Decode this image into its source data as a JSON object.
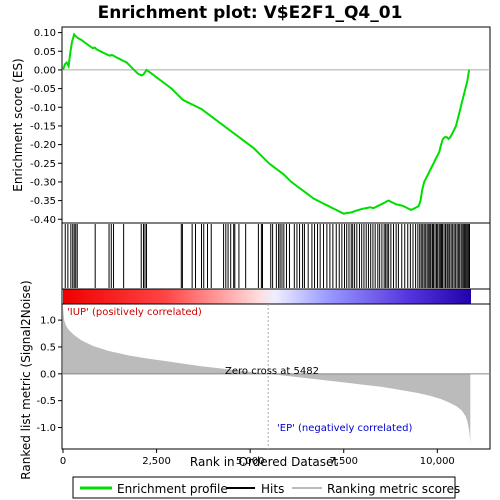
{
  "chart_data": {
    "type": "line",
    "title": "Enrichment plot: V$E2F1_Q4_01",
    "xlabel": "Rank in Ordered Dataset",
    "ylabel_top": "Enrichment score (ES)",
    "ylabel_bottom": "Ranked list metric (Signal2Noise)",
    "xlim": [
      0,
      10900
    ],
    "x_ticks": [
      0,
      2500,
      5000,
      7500,
      10000
    ],
    "x_tick_labels": [
      "0",
      "2,500",
      "5,000",
      "7,500",
      "10,000"
    ],
    "es_ylim": [
      -0.41,
      0.115
    ],
    "es_ticks": [
      0.1,
      0.05,
      0.0,
      -0.05,
      -0.1,
      -0.15,
      -0.2,
      -0.25,
      -0.3,
      -0.35,
      -0.4
    ],
    "es_tick_labels": [
      "0.10",
      "0.05",
      "0.00",
      "-0.05",
      "-0.10",
      "-0.15",
      "-0.20",
      "-0.25",
      "-0.30",
      "-0.35",
      "-0.40"
    ],
    "metric_ylim": [
      -1.4,
      1.3
    ],
    "metric_ticks": [
      1.0,
      0.5,
      0.0,
      -0.5,
      -1.0
    ],
    "metric_tick_labels": [
      "1.0",
      "0.5",
      "0.0",
      "-0.5",
      "-1.0"
    ],
    "zero_cross_rank": 5482,
    "annotations": {
      "positive": "'IUP' (positively correlated)",
      "negative": "'EP' (negatively correlated)",
      "zero_cross": "Zero cross at 5482"
    },
    "legend": {
      "position": "bottom",
      "items": [
        {
          "label": "Enrichment profile",
          "color": "#00dd00"
        },
        {
          "label": "Hits",
          "color": "#000000"
        },
        {
          "label": "Ranking metric scores",
          "color": "#bbbbbb"
        }
      ]
    },
    "colors": {
      "profile": "#00dd00",
      "hits": "#000000",
      "metric": "#bbbbbb",
      "pos_label": "#cc0000",
      "neg_label": "#0000cc"
    },
    "es_profile": {
      "x": [
        0,
        50,
        100,
        150,
        200,
        240,
        300,
        340,
        400,
        500,
        600,
        700,
        800,
        850,
        900,
        1000,
        1100,
        1200,
        1250,
        1300,
        1350,
        1400,
        1500,
        1600,
        1700,
        1800,
        1900,
        2000,
        2100,
        2150,
        2200,
        2230,
        2300,
        2400,
        2500,
        2700,
        2900,
        3100,
        3200,
        3300,
        3500,
        3700,
        3900,
        4100,
        4300,
        4500,
        4700,
        4900,
        5100,
        5300,
        5500,
        5700,
        5900,
        6100,
        6300,
        6500,
        6700,
        6900,
        7100,
        7200,
        7300,
        7400,
        7500,
        7600,
        7700,
        7800,
        7900,
        8000,
        8100,
        8200,
        8300,
        8400,
        8500,
        8600,
        8650,
        8700,
        8800,
        8900,
        9000,
        9100,
        9200,
        9300,
        9400,
        9500,
        9550,
        9600,
        9650,
        9700,
        9750,
        9800,
        9850,
        9900,
        9950,
        10000,
        10050,
        10100,
        10150,
        10200,
        10250,
        10300,
        10350,
        10400,
        10450,
        10500,
        10550,
        10600,
        10650,
        10700,
        10750,
        10800,
        10850
      ],
      "y": [
        0.0,
        0.015,
        0.02,
        0.01,
        0.05,
        0.075,
        0.095,
        0.09,
        0.085,
        0.08,
        0.072,
        0.065,
        0.058,
        0.06,
        0.055,
        0.05,
        0.045,
        0.04,
        0.038,
        0.04,
        0.038,
        0.035,
        0.03,
        0.025,
        0.02,
        0.01,
        0.0,
        -0.01,
        -0.015,
        -0.012,
        -0.005,
        0.0,
        -0.005,
        -0.012,
        -0.02,
        -0.035,
        -0.05,
        -0.07,
        -0.08,
        -0.085,
        -0.095,
        -0.105,
        -0.12,
        -0.135,
        -0.15,
        -0.165,
        -0.18,
        -0.195,
        -0.21,
        -0.23,
        -0.25,
        -0.265,
        -0.28,
        -0.3,
        -0.315,
        -0.33,
        -0.345,
        -0.355,
        -0.365,
        -0.37,
        -0.375,
        -0.38,
        -0.385,
        -0.383,
        -0.382,
        -0.378,
        -0.375,
        -0.372,
        -0.37,
        -0.368,
        -0.37,
        -0.365,
        -0.36,
        -0.355,
        -0.352,
        -0.35,
        -0.355,
        -0.36,
        -0.362,
        -0.365,
        -0.37,
        -0.375,
        -0.37,
        -0.365,
        -0.35,
        -0.32,
        -0.3,
        -0.29,
        -0.28,
        -0.27,
        -0.26,
        -0.25,
        -0.24,
        -0.23,
        -0.22,
        -0.2,
        -0.185,
        -0.18,
        -0.18,
        -0.185,
        -0.18,
        -0.17,
        -0.16,
        -0.15,
        -0.13,
        -0.11,
        -0.09,
        -0.07,
        -0.05,
        -0.03,
        0.0
      ]
    },
    "hit_ranks": [
      60,
      130,
      210,
      260,
      300,
      340,
      380,
      860,
      1230,
      1290,
      1350,
      1620,
      2090,
      2150,
      2190,
      2230,
      3160,
      3190,
      3450,
      3540,
      3700,
      3760,
      3860,
      3960,
      4290,
      4350,
      4410,
      4480,
      4560,
      4590,
      4700,
      4880,
      5220,
      5300,
      5330,
      5550,
      5600,
      5700,
      5760,
      5800,
      5850,
      5900,
      5970,
      6050,
      6180,
      6250,
      6320,
      6400,
      6450,
      6550,
      6650,
      6720,
      6800,
      6870,
      6960,
      7050,
      7130,
      7210,
      7300,
      7380,
      7450,
      7520,
      7580,
      7640,
      7700,
      7740,
      7790,
      7850,
      7920,
      7980,
      8040,
      8100,
      8160,
      8220,
      8280,
      8340,
      8410,
      8460,
      8520,
      8580,
      8620,
      8660,
      8700,
      8760,
      8830,
      8900,
      8960,
      9050,
      9130,
      9210,
      9280,
      9350,
      9420,
      9480,
      9530,
      9570,
      9610,
      9650,
      9690,
      9730,
      9770,
      9800,
      9830,
      9870,
      9900,
      9940,
      9980,
      10010,
      10050,
      10080,
      10110,
      10140,
      10180,
      10220,
      10260,
      10290,
      10330,
      10370,
      10410,
      10450,
      10490,
      10530,
      10570,
      10600,
      10640,
      10680,
      10710,
      10740,
      10770,
      10800,
      10830,
      10860
    ],
    "metric_curve": {
      "x": [
        0,
        30,
        80,
        150,
        300,
        500,
        800,
        1200,
        1700,
        2200,
        2700,
        3200,
        3700,
        4200,
        4700,
        5200,
        5482,
        6000,
        6500,
        7000,
        7500,
        8000,
        8500,
        9000,
        9500,
        9800,
        10100,
        10300,
        10500,
        10650,
        10750,
        10800,
        10830,
        10860,
        10880
      ],
      "y": [
        1.25,
        1.0,
        0.9,
        0.82,
        0.72,
        0.62,
        0.52,
        0.43,
        0.35,
        0.29,
        0.24,
        0.19,
        0.14,
        0.1,
        0.06,
        0.02,
        0.0,
        -0.04,
        -0.08,
        -0.12,
        -0.16,
        -0.2,
        -0.24,
        -0.3,
        -0.36,
        -0.41,
        -0.47,
        -0.53,
        -0.6,
        -0.68,
        -0.78,
        -0.88,
        -0.98,
        -1.1,
        -1.3
      ]
    }
  }
}
